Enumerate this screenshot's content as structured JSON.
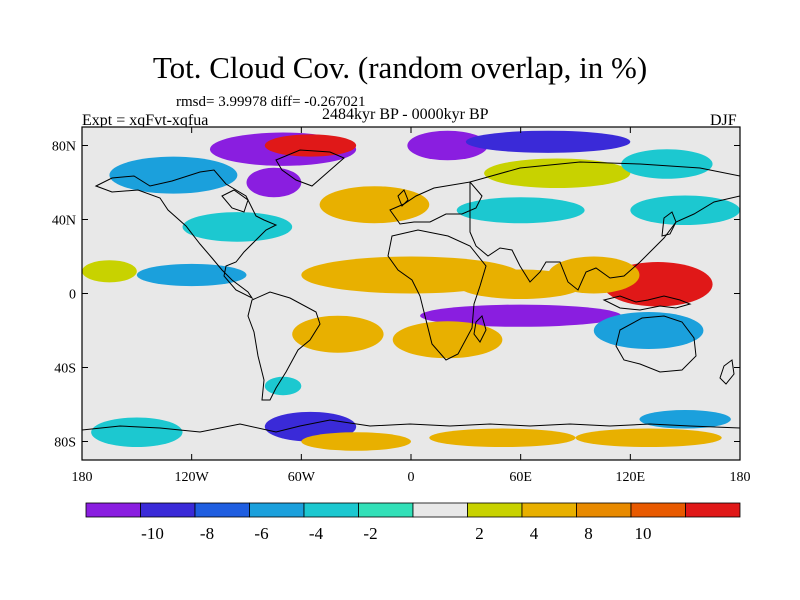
{
  "title": "Tot. Cloud Cov. (random overlap, in %)",
  "stats": "rmsd= 3.99978 diff= -0.267021",
  "experiment": "Expt = xqFvt-xqfua",
  "period": "2484kyr BP - 0000kyr BP",
  "season": "DJF",
  "map": {
    "projection": "cylindrical equidistant",
    "lon_range": [
      -180,
      180
    ],
    "lat_range": [
      -90,
      90
    ],
    "background_color": "#e8e8e8",
    "coastlines": true
  },
  "lat_ticks": [
    {
      "value": 80,
      "label": "80N"
    },
    {
      "value": 40,
      "label": "40N"
    },
    {
      "value": 0,
      "label": "0"
    },
    {
      "value": -40,
      "label": "40S"
    },
    {
      "value": -80,
      "label": "80S"
    }
  ],
  "lon_ticks": [
    {
      "value": -180,
      "label": "180"
    },
    {
      "value": -120,
      "label": "120W"
    },
    {
      "value": -60,
      "label": "60W"
    },
    {
      "value": 0,
      "label": "0"
    },
    {
      "value": 60,
      "label": "60E"
    },
    {
      "value": 120,
      "label": "120E"
    },
    {
      "value": 180,
      "label": "180"
    }
  ],
  "colorbar": {
    "colors": [
      "#8a1ee0",
      "#3a2ad8",
      "#1f5ee0",
      "#1ba0dc",
      "#1cc8d0",
      "#32e0b8",
      "#e8e8e8",
      "#c8d200",
      "#e8b000",
      "#e88a00",
      "#e85a00",
      "#e01818"
    ],
    "labels": [
      "-10",
      "-8",
      "-6",
      "-4",
      "-2",
      "2",
      "4",
      "8",
      "10"
    ]
  },
  "chart_data": {
    "type": "heatmap",
    "title": "Tot. Cloud Cov. (random overlap, in %)",
    "xlabel": "",
    "ylabel": "",
    "xlim": [
      -180,
      180
    ],
    "ylim": [
      -90,
      90
    ],
    "contour_levels": [
      -10,
      -8,
      -6,
      -4,
      -2,
      2,
      4,
      8,
      10
    ],
    "features": [
      {
        "lon": -70,
        "lat": 78,
        "lon_r": 40,
        "lat_r": 9,
        "value": -12
      },
      {
        "lon": -55,
        "lat": 80,
        "lon_r": 25,
        "lat_r": 6,
        "value": 11
      },
      {
        "lon": 20,
        "lat": 80,
        "lon_r": 22,
        "lat_r": 8,
        "value": -11
      },
      {
        "lon": 75,
        "lat": 82,
        "lon_r": 45,
        "lat_r": 6,
        "value": -9
      },
      {
        "lon": -75,
        "lat": 60,
        "lon_r": 15,
        "lat_r": 8,
        "value": -11
      },
      {
        "lon": -130,
        "lat": 64,
        "lon_r": 35,
        "lat_r": 10,
        "value": -5
      },
      {
        "lon": 80,
        "lat": 65,
        "lon_r": 40,
        "lat_r": 8,
        "value": 3
      },
      {
        "lon": 140,
        "lat": 70,
        "lon_r": 25,
        "lat_r": 8,
        "value": -4
      },
      {
        "lon": -20,
        "lat": 48,
        "lon_r": 30,
        "lat_r": 10,
        "value": 5
      },
      {
        "lon": -95,
        "lat": 36,
        "lon_r": 30,
        "lat_r": 8,
        "value": -3
      },
      {
        "lon": 60,
        "lat": 45,
        "lon_r": 35,
        "lat_r": 7,
        "value": -3
      },
      {
        "lon": 150,
        "lat": 45,
        "lon_r": 30,
        "lat_r": 8,
        "value": -3
      },
      {
        "lon": 135,
        "lat": 5,
        "lon_r": 30,
        "lat_r": 12,
        "value": 11
      },
      {
        "lon": 100,
        "lat": 10,
        "lon_r": 25,
        "lat_r": 10,
        "value": 6
      },
      {
        "lon": 0,
        "lat": 10,
        "lon_r": 60,
        "lat_r": 10,
        "value": 5
      },
      {
        "lon": 60,
        "lat": 5,
        "lon_r": 35,
        "lat_r": 8,
        "value": 5
      },
      {
        "lon": 60,
        "lat": -12,
        "lon_r": 55,
        "lat_r": 6,
        "value": -11
      },
      {
        "lon": -120,
        "lat": 10,
        "lon_r": 30,
        "lat_r": 6,
        "value": -5
      },
      {
        "lon": -165,
        "lat": 12,
        "lon_r": 15,
        "lat_r": 6,
        "value": 3
      },
      {
        "lon": -40,
        "lat": -22,
        "lon_r": 25,
        "lat_r": 10,
        "value": 5
      },
      {
        "lon": 20,
        "lat": -25,
        "lon_r": 30,
        "lat_r": 10,
        "value": 5
      },
      {
        "lon": 130,
        "lat": -20,
        "lon_r": 30,
        "lat_r": 10,
        "value": -5
      },
      {
        "lon": -70,
        "lat": -50,
        "lon_r": 10,
        "lat_r": 5,
        "value": -4
      },
      {
        "lon": -55,
        "lat": -72,
        "lon_r": 25,
        "lat_r": 8,
        "value": -10
      },
      {
        "lon": -30,
        "lat": -80,
        "lon_r": 30,
        "lat_r": 5,
        "value": 6
      },
      {
        "lon": 50,
        "lat": -78,
        "lon_r": 40,
        "lat_r": 5,
        "value": 6
      },
      {
        "lon": 130,
        "lat": -78,
        "lon_r": 40,
        "lat_r": 5,
        "value": 5
      },
      {
        "lon": 150,
        "lat": -68,
        "lon_r": 25,
        "lat_r": 5,
        "value": -5
      },
      {
        "lon": -150,
        "lat": -75,
        "lon_r": 25,
        "lat_r": 8,
        "value": -3
      }
    ]
  }
}
